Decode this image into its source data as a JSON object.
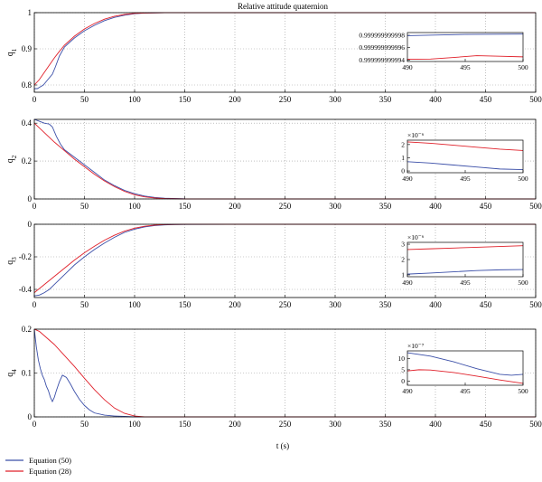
{
  "chart_data": [
    {
      "type": "line",
      "title": "Relative attitude quaternion",
      "ylabel": "q1",
      "xlabel": "",
      "xlim": [
        0,
        500
      ],
      "ylim": [
        0.78,
        1.0
      ],
      "xticks": [
        "0",
        "50",
        "100",
        "150",
        "200",
        "250",
        "300",
        "350",
        "400",
        "450",
        "500"
      ],
      "yticks": [
        "0.8",
        "0.9",
        "1"
      ],
      "grid": true,
      "series": [
        {
          "name": "Equation (50)",
          "color": "#3b4fa8",
          "x": [
            0,
            3,
            6,
            9,
            12,
            15,
            18,
            21,
            25,
            30,
            40,
            50,
            60,
            70,
            80,
            90,
            100,
            110,
            130,
            150,
            200,
            300,
            500
          ],
          "y": [
            0.79,
            0.79,
            0.795,
            0.8,
            0.81,
            0.82,
            0.83,
            0.85,
            0.88,
            0.905,
            0.93,
            0.95,
            0.965,
            0.978,
            0.987,
            0.993,
            0.997,
            0.999,
            1.0,
            1.0,
            1.0,
            1.0,
            1.0
          ]
        },
        {
          "name": "Equation (28)",
          "color": "#e0202a",
          "x": [
            0,
            5,
            10,
            15,
            20,
            25,
            30,
            40,
            50,
            60,
            70,
            80,
            90,
            100,
            110,
            130,
            150,
            200,
            300,
            500
          ],
          "y": [
            0.8,
            0.815,
            0.835,
            0.855,
            0.875,
            0.893,
            0.91,
            0.935,
            0.955,
            0.97,
            0.982,
            0.99,
            0.995,
            0.998,
            0.999,
            1.0,
            1.0,
            1.0,
            1.0,
            1.0
          ]
        }
      ],
      "inset": {
        "xlim": [
          490,
          500
        ],
        "xticks": [
          "490",
          "495",
          "500"
        ],
        "yticks": [
          "0.999999999998",
          "0.999999999996",
          "0.999999999994"
        ],
        "series": [
          {
            "name": "Equation (50)",
            "color": "#3b4fa8",
            "x": [
              490,
              495,
              500
            ],
            "y": [
              0.99999999999795,
              0.99999999999815,
              0.9999999999982
            ]
          },
          {
            "name": "Equation (28)",
            "color": "#e0202a",
            "x": [
              490,
              492,
              494,
              496,
              498,
              500
            ],
            "y": [
              0.9999999999941,
              0.99999999999415,
              0.9999999999944,
              0.9999999999947,
              0.9999999999946,
              0.9999999999945
            ]
          }
        ]
      }
    },
    {
      "type": "line",
      "ylabel": "q2",
      "xlabel": "",
      "xlim": [
        0,
        500
      ],
      "ylim": [
        0,
        0.42
      ],
      "xticks": [
        "0",
        "50",
        "100",
        "150",
        "200",
        "250",
        "300",
        "350",
        "400",
        "450",
        "500"
      ],
      "yticks": [
        "0",
        "0.2",
        "0.4"
      ],
      "grid": true,
      "series": [
        {
          "name": "Equation (50)",
          "color": "#3b4fa8",
          "x": [
            0,
            5,
            10,
            15,
            18,
            22,
            26,
            30,
            40,
            50,
            60,
            70,
            80,
            90,
            100,
            110,
            120,
            130,
            150,
            200,
            500
          ],
          "y": [
            0.42,
            0.41,
            0.4,
            0.395,
            0.38,
            0.33,
            0.29,
            0.26,
            0.22,
            0.18,
            0.14,
            0.1,
            0.07,
            0.045,
            0.028,
            0.015,
            0.008,
            0.004,
            0.001,
            0.0,
            0.0
          ]
        },
        {
          "name": "Equation (28)",
          "color": "#e0202a",
          "x": [
            0,
            10,
            20,
            30,
            40,
            50,
            60,
            70,
            80,
            90,
            100,
            110,
            120,
            130,
            150,
            200,
            500
          ],
          "y": [
            0.4,
            0.35,
            0.3,
            0.255,
            0.21,
            0.17,
            0.13,
            0.095,
            0.065,
            0.04,
            0.022,
            0.011,
            0.005,
            0.002,
            0.0,
            0.0,
            0.0
          ]
        }
      ],
      "inset": {
        "xlim": [
          490,
          500
        ],
        "exponent": "×10⁻⁶",
        "xticks": [
          "490",
          "495",
          "500"
        ],
        "yticks": [
          "0",
          "1",
          "2"
        ],
        "series": [
          {
            "name": "Equation (50)",
            "color": "#3b4fa8",
            "x": [
              490,
              492,
              494,
              496,
              498,
              500
            ],
            "y": [
              0.7,
              0.6,
              0.45,
              0.3,
              0.15,
              0.1
            ]
          },
          {
            "name": "Equation (28)",
            "color": "#e0202a",
            "x": [
              490,
              492,
              494,
              496,
              498,
              500
            ],
            "y": [
              2.2,
              2.1,
              1.95,
              1.8,
              1.65,
              1.55
            ]
          }
        ]
      }
    },
    {
      "type": "line",
      "ylabel": "q3",
      "xlabel": "",
      "xlim": [
        0,
        500
      ],
      "ylim": [
        -0.45,
        0
      ],
      "xticks": [
        "0",
        "50",
        "100",
        "150",
        "200",
        "250",
        "300",
        "350",
        "400",
        "450",
        "500"
      ],
      "yticks": [
        "-0.4",
        "-0.2",
        "0"
      ],
      "grid": true,
      "series": [
        {
          "name": "Equation (50)",
          "color": "#3b4fa8",
          "x": [
            0,
            5,
            10,
            15,
            20,
            30,
            40,
            50,
            60,
            70,
            80,
            90,
            100,
            110,
            120,
            130,
            140,
            150,
            200,
            500
          ],
          "y": [
            -0.44,
            -0.435,
            -0.42,
            -0.4,
            -0.37,
            -0.31,
            -0.25,
            -0.2,
            -0.155,
            -0.115,
            -0.08,
            -0.05,
            -0.03,
            -0.016,
            -0.008,
            -0.004,
            -0.002,
            -0.001,
            0.0,
            0.0
          ]
        },
        {
          "name": "Equation (28)",
          "color": "#e0202a",
          "x": [
            0,
            10,
            20,
            30,
            40,
            50,
            60,
            70,
            80,
            90,
            100,
            110,
            120,
            130,
            150,
            200,
            500
          ],
          "y": [
            -0.42,
            -0.37,
            -0.32,
            -0.27,
            -0.22,
            -0.175,
            -0.135,
            -0.098,
            -0.067,
            -0.042,
            -0.024,
            -0.012,
            -0.005,
            -0.002,
            0.0,
            0.0,
            0.0
          ]
        }
      ],
      "inset": {
        "xlim": [
          490,
          500
        ],
        "exponent": "×10⁻⁶",
        "xticks": [
          "490",
          "495",
          "500"
        ],
        "yticks": [
          "1",
          "2",
          "3"
        ],
        "series": [
          {
            "name": "Equation (50)",
            "color": "#3b4fa8",
            "x": [
              490,
              492,
              494,
              496,
              498,
              500
            ],
            "y": [
              1.05,
              1.12,
              1.2,
              1.28,
              1.33,
              1.35
            ]
          },
          {
            "name": "Equation (28)",
            "color": "#e0202a",
            "x": [
              490,
              492,
              494,
              496,
              498,
              500
            ],
            "y": [
              2.65,
              2.7,
              2.75,
              2.8,
              2.85,
              2.9
            ]
          }
        ]
      }
    },
    {
      "type": "line",
      "ylabel": "q4",
      "xlabel": "t (s)",
      "xlim": [
        0,
        500
      ],
      "ylim": [
        0,
        0.2
      ],
      "xticks": [
        "0",
        "50",
        "100",
        "150",
        "200",
        "250",
        "300",
        "350",
        "400",
        "450",
        "500"
      ],
      "yticks": [
        "0",
        "0.1",
        "0.2"
      ],
      "grid": true,
      "series": [
        {
          "name": "Equation (50)",
          "color": "#3b4fa8",
          "x": [
            0,
            2,
            4,
            6,
            8,
            10,
            12,
            14,
            16,
            18,
            20,
            22,
            25,
            28,
            32,
            36,
            40,
            45,
            50,
            55,
            60,
            70,
            80,
            90,
            100,
            120,
            150,
            200,
            500
          ],
          "y": [
            0.2,
            0.16,
            0.13,
            0.11,
            0.095,
            0.085,
            0.07,
            0.06,
            0.045,
            0.035,
            0.045,
            0.06,
            0.08,
            0.095,
            0.09,
            0.075,
            0.058,
            0.04,
            0.026,
            0.016,
            0.009,
            0.004,
            0.002,
            0.001,
            0.0,
            0.0,
            0.0,
            0.0,
            0.0
          ]
        },
        {
          "name": "Equation (28)",
          "color": "#e0202a",
          "x": [
            0,
            5,
            10,
            20,
            30,
            40,
            50,
            60,
            70,
            80,
            90,
            100,
            110,
            130,
            150,
            200,
            500
          ],
          "y": [
            0.2,
            0.195,
            0.185,
            0.165,
            0.14,
            0.115,
            0.088,
            0.062,
            0.039,
            0.02,
            0.008,
            0.002,
            0.0,
            0.0,
            0.0,
            0.0,
            0.0
          ]
        }
      ],
      "inset": {
        "xlim": [
          490,
          500
        ],
        "exponent": "×10⁻⁷",
        "xticks": [
          "490",
          "495",
          "500"
        ],
        "yticks": [
          "0",
          "5",
          "10"
        ],
        "series": [
          {
            "name": "Equation (50)",
            "color": "#3b4fa8",
            "x": [
              490,
              492,
              494,
              496,
              498,
              499,
              500
            ],
            "y": [
              12.5,
              11.0,
              8.5,
              5.5,
              3.0,
              2.6,
              3.0
            ]
          },
          {
            "name": "Equation (28)",
            "color": "#e0202a",
            "x": [
              490,
              491,
              492,
              494,
              496,
              498,
              500
            ],
            "y": [
              4.5,
              5.0,
              4.9,
              3.8,
              2.2,
              0.5,
              -1.0
            ]
          }
        ]
      }
    }
  ],
  "legend": [
    {
      "label": "Equation (50)",
      "color": "#3b4fa8"
    },
    {
      "label": "Equation (28)",
      "color": "#e0202a"
    }
  ]
}
